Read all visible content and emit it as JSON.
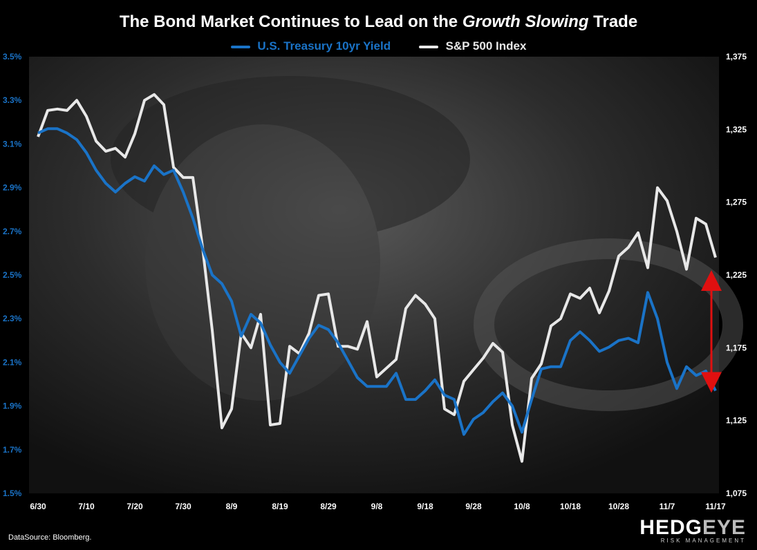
{
  "title_prefix": "The Bond Market Continues to Lead on the ",
  "title_italic": "Growth Slowing",
  "title_suffix": " Trade",
  "source": "DataSource: Bloomberg.",
  "logo": {
    "main_a": "HEDG",
    "main_b": "EYE",
    "sub": "RISK MANAGEMENT"
  },
  "colors": {
    "yield": "#1a73c7",
    "spx": "#e8e8e8",
    "arrow": "#e01010",
    "bg": "#000000"
  },
  "chart_data": {
    "type": "line",
    "x_tick_labels": [
      "6/30",
      "7/10",
      "7/20",
      "7/30",
      "8/9",
      "8/19",
      "8/29",
      "9/8",
      "9/18",
      "9/28",
      "10/8",
      "10/18",
      "10/28",
      "11/7",
      "11/17"
    ],
    "y_left": {
      "label": "U.S. Treasury 10yr Yield (%)",
      "min": 1.5,
      "max": 3.5,
      "tick_labels": [
        "1.5%",
        "1.7%",
        "1.9%",
        "2.1%",
        "2.3%",
        "2.5%",
        "2.7%",
        "2.9%",
        "3.1%",
        "3.3%",
        "3.5%"
      ]
    },
    "y_right": {
      "label": "S&P 500 Index",
      "min": 1075,
      "max": 1375,
      "tick_labels": [
        "1,075",
        "1,125",
        "1,175",
        "1,225",
        "1,275",
        "1,325",
        "1,375"
      ]
    },
    "x_range": [
      0,
      140
    ],
    "series": [
      {
        "name": "U.S. Treasury 10yr Yield",
        "axis": "left",
        "x": [
          0,
          2,
          4,
          6,
          8,
          10,
          12,
          14,
          16,
          18,
          20,
          22,
          24,
          26,
          28,
          30,
          32,
          34,
          36,
          38,
          40,
          42,
          44,
          46,
          48,
          50,
          52,
          54,
          56,
          58,
          60,
          62,
          64,
          66,
          68,
          70,
          72,
          74,
          76,
          78,
          80,
          82,
          84,
          86,
          88,
          90,
          92,
          94,
          96,
          98,
          100,
          102,
          104,
          106,
          108,
          110,
          112,
          114,
          116,
          118,
          120,
          122,
          124,
          126,
          128,
          130,
          132,
          134,
          136,
          138,
          140
        ],
        "y": [
          3.15,
          3.17,
          3.17,
          3.15,
          3.12,
          3.06,
          2.98,
          2.92,
          2.88,
          2.92,
          2.95,
          2.93,
          3.0,
          2.96,
          2.98,
          2.88,
          2.76,
          2.62,
          2.5,
          2.46,
          2.38,
          2.22,
          2.32,
          2.28,
          2.18,
          2.1,
          2.05,
          2.13,
          2.21,
          2.27,
          2.25,
          2.19,
          2.11,
          2.03,
          1.99,
          1.99,
          1.99,
          2.05,
          1.93,
          1.93,
          1.97,
          2.02,
          1.95,
          1.93,
          1.77,
          1.84,
          1.87,
          1.92,
          1.96,
          1.9,
          1.78,
          1.93,
          2.07,
          2.08,
          2.08,
          2.2,
          2.24,
          2.2,
          2.15,
          2.17,
          2.2,
          2.21,
          2.19,
          2.42,
          2.3,
          2.1,
          1.98,
          2.08,
          2.04,
          2.06,
          1.97
        ]
      },
      {
        "name": "S&P 500 Index",
        "axis": "right",
        "x": [
          0,
          2,
          4,
          6,
          8,
          10,
          12,
          14,
          16,
          18,
          20,
          22,
          24,
          26,
          28,
          30,
          32,
          34,
          36,
          38,
          40,
          42,
          44,
          46,
          48,
          50,
          52,
          54,
          56,
          58,
          60,
          62,
          64,
          66,
          68,
          70,
          72,
          74,
          76,
          78,
          80,
          82,
          84,
          86,
          88,
          90,
          92,
          94,
          96,
          98,
          100,
          102,
          104,
          106,
          108,
          110,
          112,
          114,
          116,
          118,
          120,
          122,
          124,
          126,
          128,
          130,
          132,
          134,
          136,
          138,
          140
        ],
        "y": [
          1320,
          1338,
          1339,
          1338,
          1345,
          1334,
          1317,
          1310,
          1312,
          1306,
          1322,
          1345,
          1349,
          1342,
          1299,
          1292,
          1292,
          1244,
          1187,
          1120,
          1133,
          1185,
          1175,
          1198,
          1122,
          1123,
          1176,
          1171,
          1185,
          1211,
          1212,
          1176,
          1176,
          1174,
          1193,
          1155,
          1161,
          1167,
          1202,
          1211,
          1205,
          1195,
          1133,
          1129,
          1152,
          1160,
          1168,
          1178,
          1172,
          1122,
          1097,
          1154,
          1164,
          1190,
          1195,
          1212,
          1209,
          1216,
          1199,
          1214,
          1238,
          1244,
          1254,
          1230,
          1285,
          1276,
          1255,
          1229,
          1264,
          1260,
          1237
        ]
      }
    ],
    "annotation": {
      "type": "double-arrow",
      "x": 140,
      "from_yield": 1.97,
      "to_yield": 2.5
    }
  }
}
